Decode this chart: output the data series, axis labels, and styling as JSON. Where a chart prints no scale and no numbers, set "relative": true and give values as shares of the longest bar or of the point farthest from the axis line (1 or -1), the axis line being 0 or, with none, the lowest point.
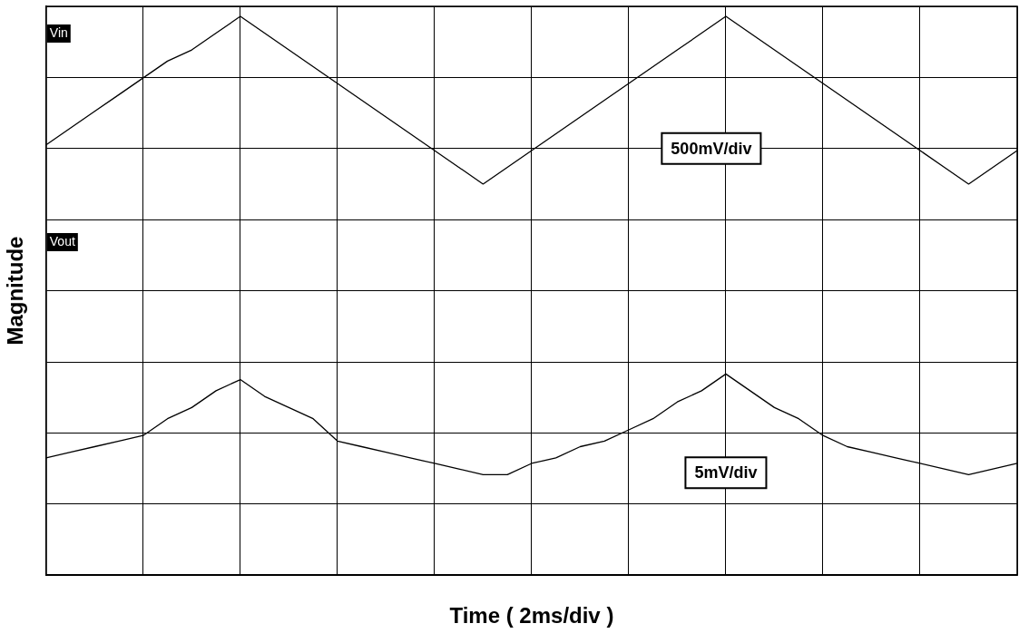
{
  "chart_data": {
    "type": "line",
    "xlabel": "Time ( 2ms/div )",
    "ylabel": "Magnitude",
    "relative": true,
    "grid": true,
    "legend": false,
    "marker": "none",
    "line_style": "solid",
    "categories": [
      null,
      null,
      null,
      null,
      null,
      null,
      null,
      null,
      null,
      null,
      null,
      null,
      null,
      null,
      null,
      null,
      null,
      null,
      null,
      null,
      null,
      null,
      null,
      null,
      null,
      null,
      null,
      null,
      null,
      null,
      null,
      null,
      null,
      null,
      null,
      null,
      null,
      null,
      null,
      null,
      null
    ],
    "series": [
      {
        "name": "Vin",
        "color": "#000000",
        "values": [
          0.77,
          0.8,
          0.83,
          0.86,
          0.89,
          0.92,
          0.94,
          0.97,
          1.0,
          0.97,
          0.94,
          0.91,
          0.88,
          0.85,
          0.82,
          0.79,
          0.76,
          0.73,
          0.7,
          0.73,
          0.76,
          0.79,
          0.82,
          0.85,
          0.88,
          0.91,
          0.94,
          0.97,
          1.0,
          0.97,
          0.94,
          0.91,
          0.88,
          0.85,
          0.82,
          0.79,
          0.76,
          0.73,
          0.7,
          0.73,
          0.76
        ]
      },
      {
        "name": "Vout",
        "color": "#000000",
        "values": [
          0.21,
          0.22,
          0.23,
          0.24,
          0.25,
          0.28,
          0.3,
          0.33,
          0.35,
          0.32,
          0.3,
          0.28,
          0.24,
          0.23,
          0.22,
          0.21,
          0.2,
          0.19,
          0.18,
          0.18,
          0.2,
          0.21,
          0.23,
          0.24,
          0.26,
          0.28,
          0.31,
          0.33,
          0.36,
          0.33,
          0.3,
          0.28,
          0.25,
          0.23,
          0.22,
          0.21,
          0.2,
          0.19,
          0.18,
          0.19,
          0.2
        ]
      }
    ],
    "annotations": [
      "500mV/div",
      "5mV/div"
    ]
  }
}
